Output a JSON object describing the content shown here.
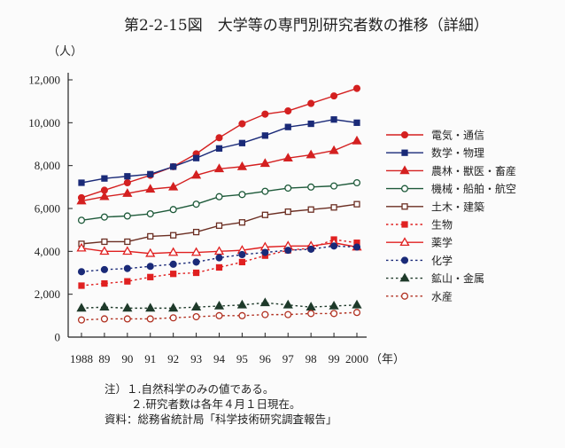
{
  "title": "第2-2-15図　大学等の専門別研究者数の推移（詳細）",
  "notes": {
    "note1": "注）１.自然科学のみの値である。",
    "note2": "２.研究者数は各年４月１日現在。",
    "source": "資料：総務省統計局「科学技術研究調査報告」"
  },
  "chart_data": {
    "type": "line",
    "ylabel": "（人）",
    "xlabel": "（年）",
    "ylim": [
      0,
      12000
    ],
    "yticks": [
      0,
      2000,
      4000,
      6000,
      8000,
      10000,
      12000
    ],
    "ytick_labels": [
      "0",
      "2,000",
      "4,000",
      "6,000",
      "8,000",
      "10,000",
      "12,000"
    ],
    "categories": [
      "1988",
      "89",
      "90",
      "91",
      "92",
      "93",
      "94",
      "95",
      "96",
      "97",
      "98",
      "99",
      "2000"
    ],
    "grid": false,
    "legend": "right",
    "series": [
      {
        "name": "電気・通信",
        "color": "#d42020",
        "dash": false,
        "marker": "circle-filled",
        "values": [
          6500,
          6850,
          7200,
          7550,
          7950,
          8550,
          9300,
          9950,
          10400,
          10550,
          10900,
          11250,
          11600
        ]
      },
      {
        "name": "数学・物理",
        "color": "#1a2a78",
        "dash": false,
        "marker": "square-filled",
        "values": [
          7200,
          7400,
          7500,
          7600,
          7950,
          8350,
          8800,
          9050,
          9400,
          9800,
          9950,
          10150,
          10000
        ]
      },
      {
        "name": "農林・獣医・畜産",
        "color": "#d42020",
        "dash": false,
        "marker": "triangle-filled",
        "values": [
          6350,
          6550,
          6700,
          6900,
          7000,
          7550,
          7850,
          7950,
          8100,
          8350,
          8500,
          8700,
          9150
        ]
      },
      {
        "name": "機械・船舶・航空",
        "color": "#1e5a3a",
        "dash": false,
        "marker": "circle-open",
        "values": [
          5450,
          5600,
          5650,
          5750,
          5950,
          6200,
          6550,
          6650,
          6800,
          6950,
          7000,
          7050,
          7200
        ]
      },
      {
        "name": "土木・建築",
        "color": "#6b2e22",
        "dash": false,
        "marker": "square-open",
        "values": [
          4350,
          4450,
          4450,
          4700,
          4750,
          4900,
          5200,
          5350,
          5700,
          5850,
          5950,
          6050,
          6200
        ]
      },
      {
        "name": "生物",
        "color": "#e02020",
        "dash": true,
        "marker": "square-filled",
        "values": [
          2400,
          2500,
          2600,
          2800,
          2950,
          3000,
          3250,
          3500,
          3800,
          4050,
          4150,
          4550,
          4400
        ]
      },
      {
        "name": "薬学",
        "color": "#e02020",
        "dash": false,
        "marker": "triangle-open",
        "values": [
          4150,
          4000,
          4000,
          3900,
          3950,
          3950,
          4000,
          4050,
          4200,
          4250,
          4250,
          4400,
          4200
        ]
      },
      {
        "name": "化学",
        "color": "#1a2a78",
        "dash": true,
        "marker": "circle-filled",
        "values": [
          3050,
          3150,
          3200,
          3300,
          3400,
          3500,
          3700,
          3850,
          3950,
          4050,
          4100,
          4250,
          4200
        ]
      },
      {
        "name": "鉱山・金属",
        "color": "#1e3a2a",
        "dash": true,
        "marker": "triangle-filled",
        "values": [
          1350,
          1400,
          1350,
          1350,
          1350,
          1400,
          1450,
          1500,
          1600,
          1500,
          1400,
          1450,
          1500
        ]
      },
      {
        "name": "水産",
        "color": "#b03020",
        "dash": true,
        "marker": "circle-open",
        "values": [
          800,
          850,
          850,
          850,
          900,
          950,
          1000,
          1000,
          1050,
          1050,
          1100,
          1100,
          1150
        ]
      }
    ]
  }
}
